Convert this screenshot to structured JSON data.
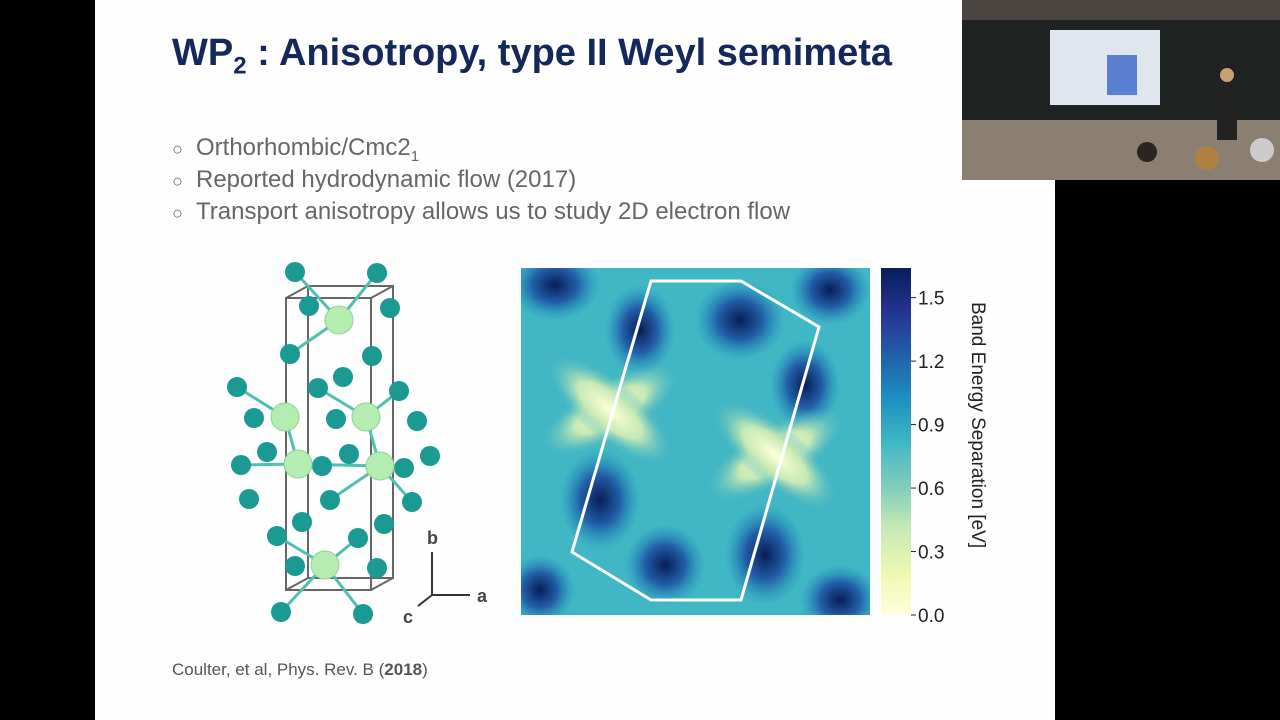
{
  "slide": {
    "title": {
      "main": "WP",
      "sub": "2",
      "rest": ": Anisotropy, type II Weyl semimeta"
    },
    "bullets": [
      {
        "text": "Orthorhombic/Cmc2",
        "sub": "1"
      },
      {
        "text": "Reported hydrodynamic flow (2017)"
      },
      {
        "text": "Transport anisotropy allows us to study 2D electron flow"
      }
    ],
    "axes_labels": {
      "b": "b",
      "a": "a",
      "c": "c"
    },
    "colorbar": {
      "label": "Band Energy Separation [eV]",
      "lim": [
        0,
        1.64
      ],
      "ticks": [
        {
          "value": 0,
          "label": "0.0"
        },
        {
          "value": 0.3,
          "label": "0.3"
        },
        {
          "value": 0.6,
          "label": "0.6"
        },
        {
          "value": 0.9,
          "label": "0.9"
        },
        {
          "value": 1.2,
          "label": "1.2"
        },
        {
          "value": 1.5,
          "label": "1.5"
        }
      ]
    },
    "citation": {
      "before": "Coulter, et al, Phys. Rev. B (",
      "year": "2018",
      "after": ")"
    }
  }
}
